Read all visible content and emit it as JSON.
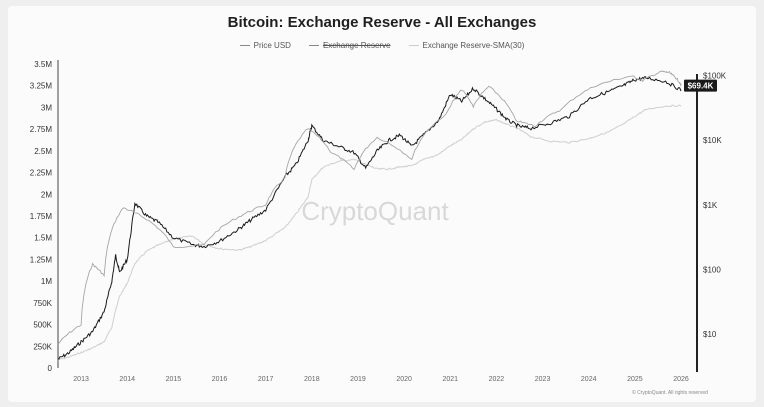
{
  "chart_data": {
    "type": "line",
    "title": "Bitcoin: Exchange Reserve - All Exchanges",
    "legend": [
      "Price USD",
      "Exchange Reserve",
      "Exchange Reserve-SMA(30)"
    ],
    "legend_placement": "top-center",
    "x_ticks": [
      "2013",
      "2014",
      "2015",
      "2016",
      "2017",
      "2018",
      "2019",
      "2020",
      "2021",
      "2022",
      "2023",
      "2024",
      "2025",
      "2026"
    ],
    "y_left_ticks": [
      "0",
      "250K",
      "500K",
      "750K",
      "1M",
      "1.25M",
      "1.5M",
      "1.75M",
      "2M",
      "2.25M",
      "2.5M",
      "2.75M",
      "3M",
      "3.25M",
      "3.5M"
    ],
    "y_left_range": [
      0,
      3500000
    ],
    "y_right_ticks": [
      "$10",
      "$100",
      "$1K",
      "$10K",
      "$100K"
    ],
    "y_right_scale": "log",
    "price_tag": "$69.4K",
    "watermark": "CryptoQuant",
    "grid": false,
    "series": [
      {
        "name": "Exchange Reserve",
        "axis": "left",
        "points": [
          [
            "2012-07",
            100000
          ],
          [
            "2012-10",
            180000
          ],
          [
            "2013-01",
            300000
          ],
          [
            "2013-04",
            420000
          ],
          [
            "2013-07",
            650000
          ],
          [
            "2013-09",
            1000000
          ],
          [
            "2013-10",
            1300000
          ],
          [
            "2013-11",
            1100000
          ],
          [
            "2014-01",
            1250000
          ],
          [
            "2014-03",
            1900000
          ],
          [
            "2014-06",
            1750000
          ],
          [
            "2014-09",
            1680000
          ],
          [
            "2015-01",
            1500000
          ],
          [
            "2015-06",
            1420000
          ],
          [
            "2015-09",
            1400000
          ],
          [
            "2016-01",
            1460000
          ],
          [
            "2016-06",
            1600000
          ],
          [
            "2016-09",
            1700000
          ],
          [
            "2017-01",
            1820000
          ],
          [
            "2017-06",
            2200000
          ],
          [
            "2017-09",
            2350000
          ],
          [
            "2017-12",
            2620000
          ],
          [
            "2018-01",
            2790000
          ],
          [
            "2018-04",
            2620000
          ],
          [
            "2018-08",
            2550000
          ],
          [
            "2018-12",
            2480000
          ],
          [
            "2019-03",
            2300000
          ],
          [
            "2019-06",
            2500000
          ],
          [
            "2019-09",
            2620000
          ],
          [
            "2019-12",
            2680000
          ],
          [
            "2020-03",
            2550000
          ],
          [
            "2020-06",
            2680000
          ],
          [
            "2020-10",
            2850000
          ],
          [
            "2021-01",
            3150000
          ],
          [
            "2021-04",
            3070000
          ],
          [
            "2021-07",
            3220000
          ],
          [
            "2021-10",
            3100000
          ],
          [
            "2022-01",
            2980000
          ],
          [
            "2022-04",
            2850000
          ],
          [
            "2022-07",
            2780000
          ],
          [
            "2022-10",
            2760000
          ],
          [
            "2023-03",
            2820000
          ],
          [
            "2023-08",
            2900000
          ],
          [
            "2024-01",
            3100000
          ],
          [
            "2024-06",
            3180000
          ],
          [
            "2024-10",
            3250000
          ],
          [
            "2025-01",
            3320000
          ],
          [
            "2025-04",
            3340000
          ],
          [
            "2025-09",
            3300000
          ],
          [
            "2026-01",
            3200000
          ]
        ]
      },
      {
        "name": "Price USD",
        "axis": "right",
        "points": [
          [
            "2012-07",
            7
          ],
          [
            "2013-01",
            14
          ],
          [
            "2013-04",
            120
          ],
          [
            "2013-07",
            80
          ],
          [
            "2013-12",
            900
          ],
          [
            "2014-06",
            600
          ],
          [
            "2015-01",
            220
          ],
          [
            "2015-09",
            240
          ],
          [
            "2016-06",
            650
          ],
          [
            "2017-01",
            1000
          ],
          [
            "2017-06",
            2600
          ],
          [
            "2017-12",
            15000
          ],
          [
            "2018-06",
            6500
          ],
          [
            "2018-12",
            3500
          ],
          [
            "2019-06",
            11000
          ],
          [
            "2020-03",
            5000
          ],
          [
            "2020-12",
            25000
          ],
          [
            "2021-04",
            60000
          ],
          [
            "2021-07",
            33000
          ],
          [
            "2021-11",
            67000
          ],
          [
            "2022-06",
            20000
          ],
          [
            "2022-11",
            16500
          ],
          [
            "2023-06",
            30000
          ],
          [
            "2024-03",
            70000
          ],
          [
            "2024-12",
            98000
          ],
          [
            "2025-03",
            83000
          ],
          [
            "2025-08",
            115000
          ],
          [
            "2025-10",
            110000
          ],
          [
            "2025-12",
            88000
          ],
          [
            "2026-01",
            69400
          ]
        ]
      }
    ]
  },
  "copyright": "© CryptoQuant. All rights reserved"
}
